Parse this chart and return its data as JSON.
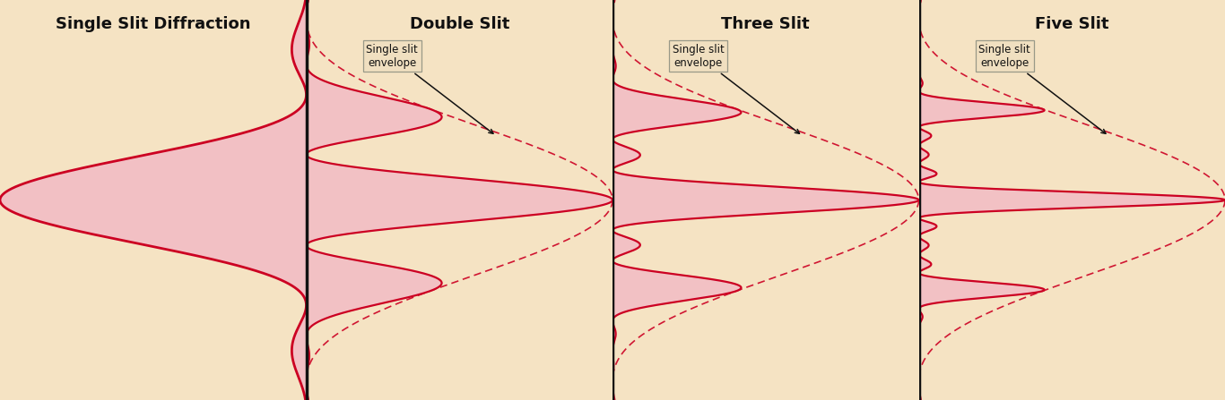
{
  "bg_color": "#F5E3C3",
  "line_color": "#CC0022",
  "fill_color": "#F2BEC5",
  "divider_color": "#111111",
  "text_color": "#111111",
  "annot_box_bg": "#F0DFC0",
  "annot_box_edge": "#999988",
  "titles": [
    "Single Slit Diffraction",
    "Double Slit",
    "Three Slit",
    "Five Slit"
  ],
  "n_slits": [
    1,
    2,
    3,
    5
  ],
  "title_fontsize": 13,
  "label_fontsize": 8.5,
  "theta_max": 5.0,
  "single_scale": 0.38,
  "d_a_double": 2.0,
  "d_a_three": 2.0,
  "d_a_five": 2.0,
  "multi_scale": 0.22
}
